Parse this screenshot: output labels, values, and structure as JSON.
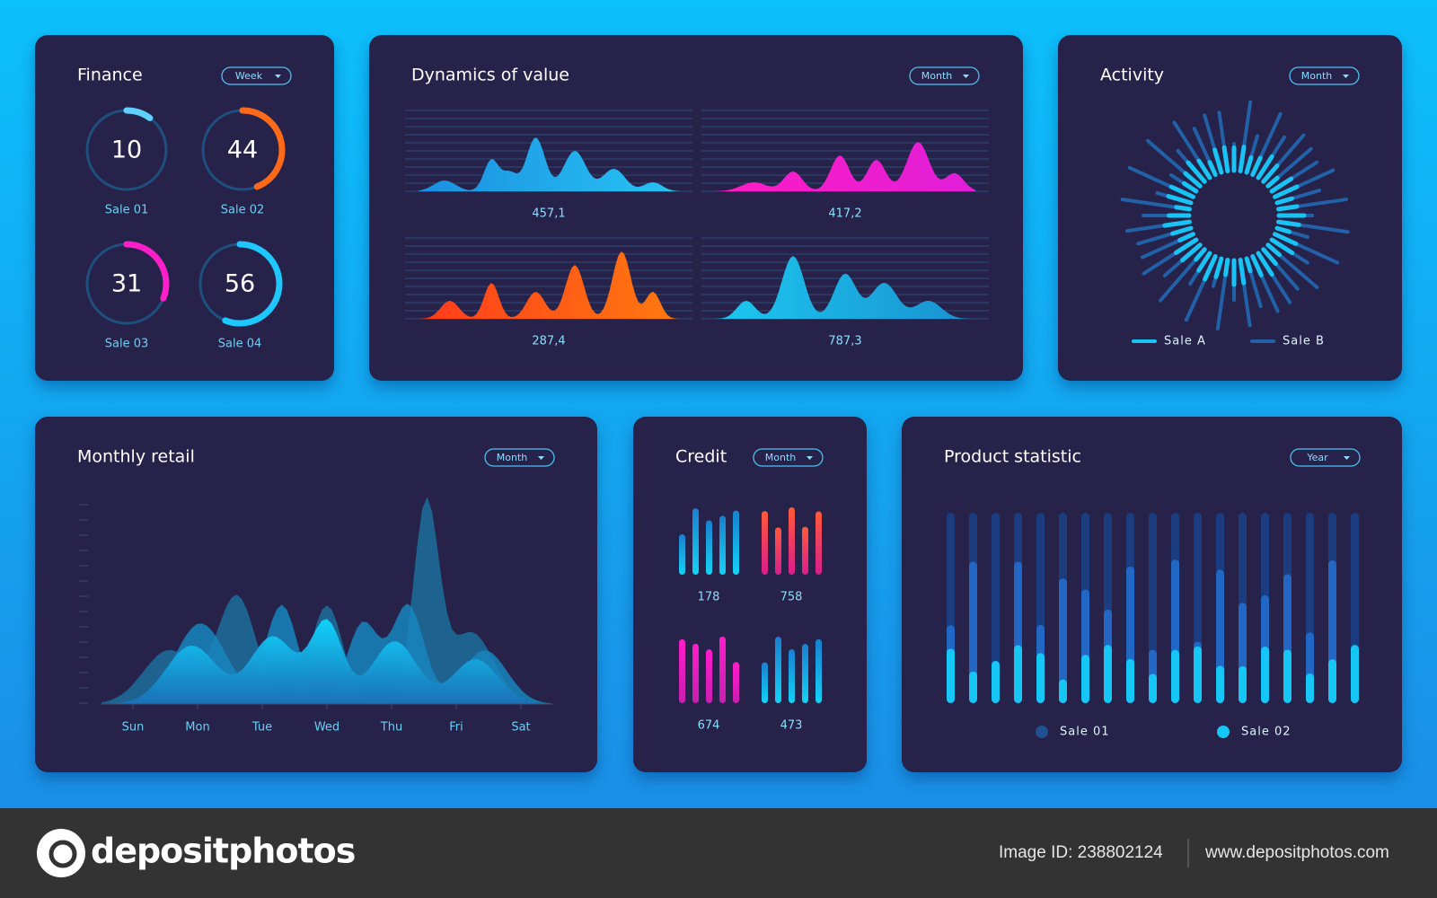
{
  "finance": {
    "title": "Finance",
    "filter": "Week",
    "rings": [
      {
        "value": 10,
        "label": "Sale 01"
      },
      {
        "value": 44,
        "label": "Sale 02"
      },
      {
        "value": 31,
        "label": "Sale 03"
      },
      {
        "value": 56,
        "label": "Sale 04"
      }
    ]
  },
  "dynamics": {
    "title": "Dynamics of value",
    "filter": "Month",
    "values": [
      "457,1",
      "417,2",
      "287,4",
      "787,3"
    ]
  },
  "activity": {
    "title": "Activity",
    "filter": "Month",
    "legend": [
      "Sale A",
      "Sale B"
    ]
  },
  "retail": {
    "title": "Monthly retail",
    "filter": "Month",
    "days": [
      "Sun",
      "Mon",
      "Tue",
      "Wed",
      "Thu",
      "Fri",
      "Sat"
    ]
  },
  "credit": {
    "title": "Credit",
    "filter": "Month",
    "values": [
      178,
      758,
      674,
      473
    ]
  },
  "product": {
    "title": "Product statistic",
    "filter": "Year",
    "legend": [
      "Sale 01",
      "Sale 02"
    ]
  },
  "footer": {
    "brand": "depositphotos",
    "image_id": "Image ID: 238802124",
    "url": "www.depositphotos.com"
  }
}
